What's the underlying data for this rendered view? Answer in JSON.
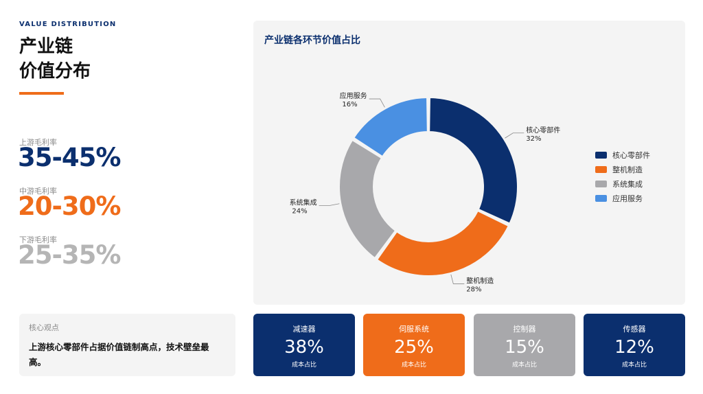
{
  "header": {
    "kicker": "VALUE DISTRIBUTION",
    "title_line1": "产业链",
    "title_line2": "价值分布"
  },
  "margins": [
    {
      "label": "上游毛利率",
      "value": "35-45%"
    },
    {
      "label": "中游毛利率",
      "value": "20-30%"
    },
    {
      "label": "下游毛利率",
      "value": "25-35%"
    }
  ],
  "insight": {
    "label": "核心观点",
    "text": "上游核心零部件占据价值链制高点，技术壁垒最高。"
  },
  "colors": {
    "navy": "#0b2f6e",
    "orange": "#ef6c1a",
    "gray": "#a8a8ab",
    "lightblue": "#4a90e2"
  },
  "chart_data": {
    "type": "pie",
    "title": "产业链各环节价值占比",
    "donut": true,
    "legend_position": "right",
    "slices": [
      {
        "name": "核心零部件",
        "value": 32,
        "label": "32%",
        "color": "#0b2f6e"
      },
      {
        "name": "整机制造",
        "value": 28,
        "label": "28%",
        "color": "#ef6c1a"
      },
      {
        "name": "系统集成",
        "value": 24,
        "label": "24%",
        "color": "#a8a8ab"
      },
      {
        "name": "应用服务",
        "value": 16,
        "label": "16%",
        "color": "#4a90e2"
      }
    ]
  },
  "cost_cards": [
    {
      "name": "减速器",
      "value": "38%",
      "sub": "成本占比",
      "color": "#0b2f6e"
    },
    {
      "name": "伺服系统",
      "value": "25%",
      "sub": "成本占比",
      "color": "#ef6c1a"
    },
    {
      "name": "控制器",
      "value": "15%",
      "sub": "成本占比",
      "color": "#a8a8ab"
    },
    {
      "name": "传感器",
      "value": "12%",
      "sub": "成本占比",
      "color": "#0b2f6e"
    }
  ]
}
